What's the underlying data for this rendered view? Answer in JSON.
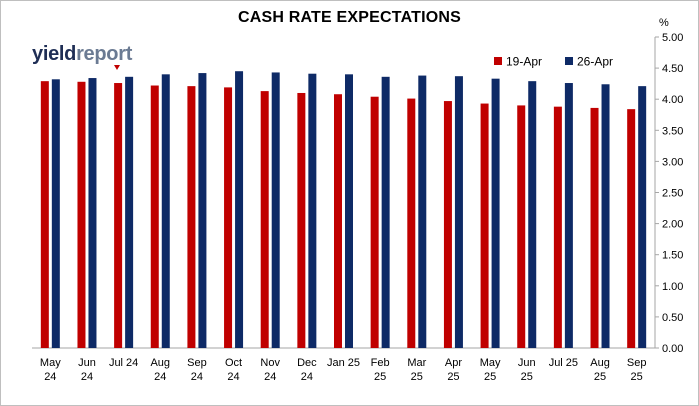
{
  "logo": {
    "part1": "yield",
    "part2": "report"
  },
  "colors": {
    "series1": "#c00000",
    "series2": "#0e2a66",
    "gridline": "#d9d9d9",
    "axis": "#a6a6a6"
  },
  "chart_data": {
    "type": "bar",
    "title": "CASH RATE EXPECTATIONS",
    "y_unit": "%",
    "ylim": [
      0,
      5
    ],
    "y_ticks": [
      "5.00",
      "4.50",
      "4.00",
      "3.50",
      "3.00",
      "2.50",
      "2.00",
      "1.50",
      "1.00",
      "0.50",
      "0.00"
    ],
    "y_axis_side": "right",
    "grid": false,
    "legend_position": "top-right",
    "categories": [
      [
        "May",
        "24"
      ],
      [
        "Jun",
        "24"
      ],
      [
        "Jul 24"
      ],
      [
        "Aug",
        "24"
      ],
      [
        "Sep",
        "24"
      ],
      [
        "Oct",
        "24"
      ],
      [
        "Nov",
        "24"
      ],
      [
        "Dec",
        "24"
      ],
      [
        "Jan 25"
      ],
      [
        "Feb",
        "25"
      ],
      [
        "Mar",
        "25"
      ],
      [
        "Apr",
        "25"
      ],
      [
        "May",
        "25"
      ],
      [
        "Jun",
        "25"
      ],
      [
        "Jul 25"
      ],
      [
        "Aug",
        "25"
      ],
      [
        "Sep",
        "25"
      ]
    ],
    "series": [
      {
        "name": "19-Apr",
        "values": [
          4.29,
          4.28,
          4.26,
          4.22,
          4.21,
          4.19,
          4.13,
          4.1,
          4.08,
          4.04,
          4.01,
          3.97,
          3.93,
          3.9,
          3.88,
          3.86,
          3.84
        ]
      },
      {
        "name": "26-Apr",
        "values": [
          4.32,
          4.34,
          4.36,
          4.4,
          4.42,
          4.45,
          4.43,
          4.41,
          4.4,
          4.36,
          4.38,
          4.37,
          4.33,
          4.29,
          4.26,
          4.24,
          4.21
        ]
      }
    ]
  }
}
